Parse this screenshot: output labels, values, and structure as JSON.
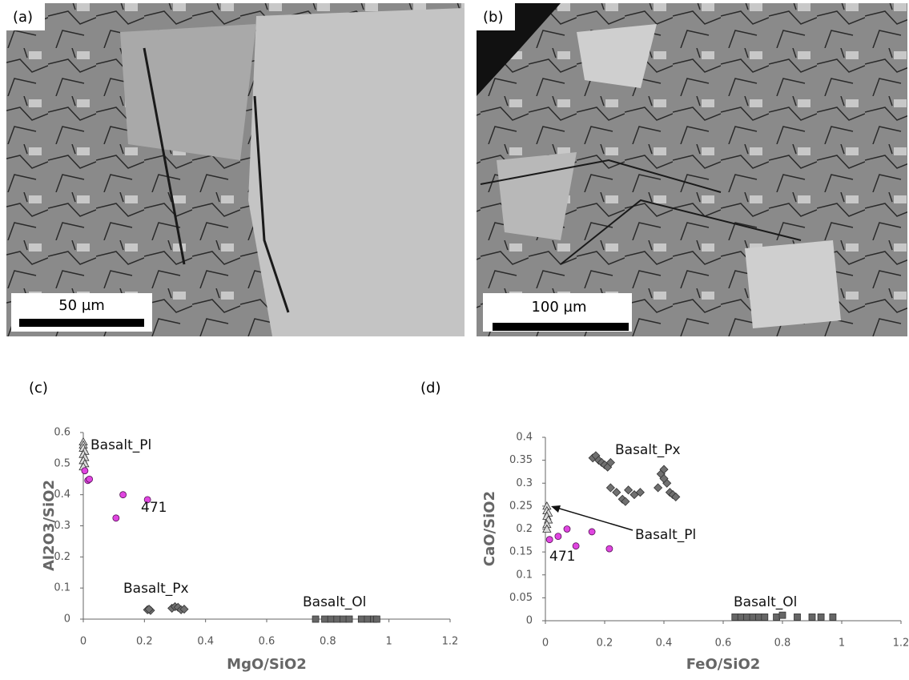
{
  "images": [
    {
      "label": "(a)",
      "scale_bar": "50 µm"
    },
    {
      "label": "(b)",
      "scale_bar": "100 µm"
    }
  ],
  "chart_data": [
    {
      "type": "scatter",
      "title": "(c)",
      "x_label": "MgO/SiO2",
      "y_label": "Al2O3/SiO2",
      "xlim": [
        0,
        1.2
      ],
      "xticks": [
        0,
        0.2,
        0.4,
        0.6,
        0.8,
        1,
        1.2
      ],
      "ylim": [
        0,
        0.6
      ],
      "yticks": [
        0,
        0.1,
        0.2,
        0.3,
        0.4,
        0.5,
        0.6
      ],
      "grid": false,
      "series": [
        {
          "name": "Basalt_Pl",
          "marker": "triangle",
          "color": "#dcdcdc",
          "x": [
            0,
            0,
            0,
            0.005,
            0,
            0.005,
            0,
            0.005,
            0
          ],
          "values": [
            0.57,
            0.56,
            0.55,
            0.54,
            0.53,
            0.52,
            0.51,
            0.5,
            0.49
          ]
        },
        {
          "name": "471",
          "marker": "circle",
          "color": "#e045e0",
          "x": [
            0.005,
            0.015,
            0.02,
            0.13,
            0.21,
            0.107
          ],
          "values": [
            0.477,
            0.446,
            0.45,
            0.4,
            0.384,
            0.325
          ]
        },
        {
          "name": "Basalt_Px",
          "marker": "diamond",
          "color": "#707070",
          "x": [
            0.21,
            0.22,
            0.215,
            0.29,
            0.3,
            0.31,
            0.32,
            0.33
          ],
          "values": [
            0.03,
            0.028,
            0.032,
            0.035,
            0.04,
            0.038,
            0.03,
            0.032
          ]
        },
        {
          "name": "Basalt_Ol",
          "marker": "square",
          "color": "#666666",
          "x": [
            0.76,
            0.79,
            0.81,
            0.83,
            0.85,
            0.87,
            0.91,
            0.93,
            0.95,
            0.96
          ],
          "values": [
            0,
            0,
            0,
            0,
            0,
            0,
            0,
            0,
            0,
            0
          ]
        }
      ]
    },
    {
      "type": "scatter",
      "title": "(d)",
      "x_label": "FeO/SiO2",
      "y_label": "CaO/SiO2",
      "xlim": [
        0,
        1.2
      ],
      "xticks": [
        0,
        0.2,
        0.4,
        0.6,
        0.8,
        1,
        1.2
      ],
      "ylim": [
        0,
        0.4
      ],
      "yticks": [
        0,
        0.05,
        0.1,
        0.15,
        0.2,
        0.25,
        0.3,
        0.35,
        0.4
      ],
      "grid": false,
      "series": [
        {
          "name": "Basalt_Pl",
          "marker": "triangle",
          "color": "#dcdcdc",
          "x": [
            0.005,
            0.005,
            0.01,
            0.005,
            0.01,
            0.005,
            0.005
          ],
          "values": [
            0.25,
            0.24,
            0.235,
            0.228,
            0.22,
            0.21,
            0.2
          ]
        },
        {
          "name": "471",
          "marker": "circle",
          "color": "#e045e0",
          "x": [
            0.014,
            0.043,
            0.073,
            0.103,
            0.157,
            0.216
          ],
          "values": [
            0.177,
            0.184,
            0.2,
            0.163,
            0.194,
            0.157
          ]
        },
        {
          "name": "Basalt_Px",
          "marker": "diamond",
          "color": "#707070",
          "x": [
            0.16,
            0.17,
            0.18,
            0.19,
            0.2,
            0.21,
            0.22,
            0.22,
            0.24,
            0.26,
            0.27,
            0.28,
            0.3,
            0.32,
            0.38,
            0.39,
            0.4,
            0.41,
            0.42,
            0.43,
            0.44,
            0.4
          ],
          "values": [
            0.355,
            0.36,
            0.35,
            0.345,
            0.34,
            0.335,
            0.345,
            0.29,
            0.28,
            0.265,
            0.26,
            0.285,
            0.275,
            0.28,
            0.29,
            0.32,
            0.33,
            0.3,
            0.28,
            0.275,
            0.27,
            0.31
          ]
        },
        {
          "name": "Basalt_Ol",
          "marker": "square",
          "color": "#666666",
          "x": [
            0.64,
            0.66,
            0.68,
            0.7,
            0.72,
            0.74,
            0.78,
            0.8,
            0.85,
            0.9,
            0.93,
            0.97
          ],
          "values": [
            0.008,
            0.008,
            0.008,
            0.008,
            0.008,
            0.008,
            0.008,
            0.012,
            0.008,
            0.008,
            0.008,
            0.008
          ]
        }
      ]
    }
  ]
}
